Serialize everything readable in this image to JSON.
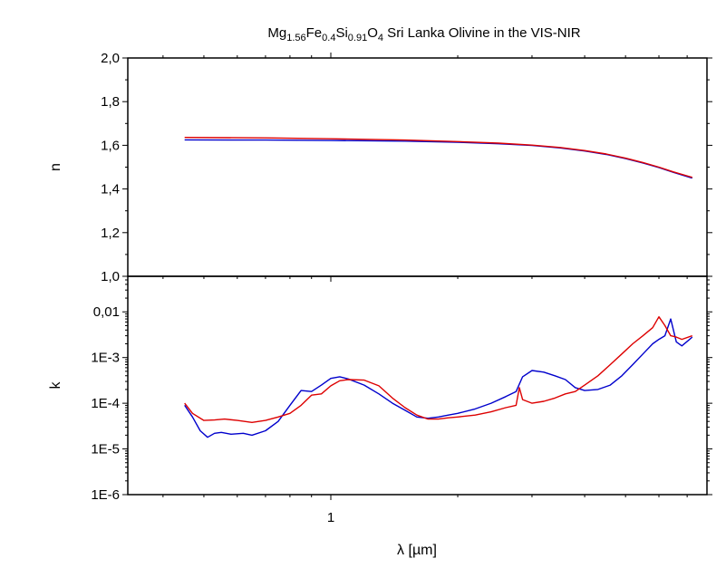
{
  "chart_data": {
    "type": "line",
    "title": {
      "prefix": "Mg",
      "sub1": "1.56",
      "el2": "Fe",
      "sub2": "0.4",
      "el3": "Si",
      "sub3": "0.91",
      "el4": "O",
      "sub4": "4",
      "suffix": " Sri Lanka Olivine in the VIS-NIR"
    },
    "xlabel": "λ [µm]",
    "xscale": "log",
    "xlim": [
      0.33,
      7.8
    ],
    "xticks": [
      {
        "value": 1,
        "label": "1"
      }
    ],
    "colors": {
      "blue": "#0000cc",
      "red": "#dd0000"
    },
    "panels": [
      {
        "id": "n",
        "ylabel": "n",
        "yscale": "linear",
        "ylim": [
          1.0,
          2.0
        ],
        "yticks": [
          {
            "value": 1.0,
            "label": "1,0"
          },
          {
            "value": 1.2,
            "label": "1,2"
          },
          {
            "value": 1.4,
            "label": "1,4"
          },
          {
            "value": 1.6,
            "label": "1,6"
          },
          {
            "value": 1.8,
            "label": "1,8"
          },
          {
            "value": 2.0,
            "label": "2,0"
          }
        ],
        "series": [
          {
            "color": "blue",
            "x": [
              0.45,
              0.7,
              1.0,
              1.5,
              2.0,
              2.5,
              3.0,
              3.5,
              4.0,
              4.5,
              5.0,
              5.5,
              6.0,
              6.5,
              7.2
            ],
            "y": [
              1.625,
              1.624,
              1.622,
              1.619,
              1.614,
              1.607,
              1.599,
              1.588,
              1.574,
              1.558,
              1.539,
              1.519,
              1.498,
              1.476,
              1.45
            ]
          },
          {
            "color": "red",
            "x": [
              0.45,
              0.7,
              1.0,
              1.5,
              2.0,
              2.5,
              3.0,
              3.5,
              4.0,
              4.5,
              5.0,
              5.5,
              6.0,
              6.5,
              7.2
            ],
            "y": [
              1.636,
              1.634,
              1.63,
              1.624,
              1.617,
              1.61,
              1.601,
              1.59,
              1.576,
              1.56,
              1.541,
              1.521,
              1.5,
              1.478,
              1.453
            ]
          }
        ]
      },
      {
        "id": "k",
        "ylabel": "k",
        "yscale": "log",
        "ylim": [
          1e-06,
          0.06
        ],
        "yticks": [
          {
            "value": 1e-06,
            "label": "1E-6"
          },
          {
            "value": 1e-05,
            "label": "1E-5"
          },
          {
            "value": 0.0001,
            "label": "1E-4"
          },
          {
            "value": 0.001,
            "label": "1E-3"
          },
          {
            "value": 0.01,
            "label": "0,01"
          }
        ],
        "series": [
          {
            "color": "blue",
            "x": [
              0.45,
              0.47,
              0.49,
              0.51,
              0.53,
              0.55,
              0.58,
              0.62,
              0.65,
              0.7,
              0.75,
              0.8,
              0.85,
              0.9,
              0.95,
              1.0,
              1.05,
              1.1,
              1.2,
              1.3,
              1.4,
              1.5,
              1.6,
              1.7,
              1.8,
              1.9,
              2.0,
              2.2,
              2.4,
              2.6,
              2.75,
              2.85,
              3.0,
              3.2,
              3.4,
              3.6,
              3.8,
              4.0,
              4.3,
              4.6,
              4.9,
              5.2,
              5.5,
              5.8,
              6.0,
              6.2,
              6.4,
              6.6,
              6.8,
              7.2
            ],
            "y": [
              9e-05,
              5e-05,
              2.5e-05,
              1.8e-05,
              2.2e-05,
              2.3e-05,
              2.1e-05,
              2.2e-05,
              2e-05,
              2.5e-05,
              4e-05,
              9e-05,
              0.00019,
              0.00018,
              0.00025,
              0.00035,
              0.00038,
              0.00034,
              0.00025,
              0.00016,
              0.0001,
              7e-05,
              5e-05,
              4.7e-05,
              5e-05,
              5.5e-05,
              6e-05,
              7.5e-05,
              0.0001,
              0.00014,
              0.00018,
              0.00038,
              0.00052,
              0.00048,
              0.0004,
              0.00033,
              0.00022,
              0.00019,
              0.0002,
              0.00025,
              0.0004,
              0.0007,
              0.0012,
              0.002,
              0.0025,
              0.003,
              0.007,
              0.0022,
              0.0018,
              0.0028
            ]
          },
          {
            "color": "red",
            "x": [
              0.45,
              0.47,
              0.5,
              0.53,
              0.56,
              0.6,
              0.65,
              0.7,
              0.75,
              0.8,
              0.85,
              0.9,
              0.95,
              1.0,
              1.05,
              1.1,
              1.2,
              1.3,
              1.4,
              1.5,
              1.6,
              1.7,
              1.8,
              1.9,
              2.0,
              2.2,
              2.4,
              2.6,
              2.75,
              2.8,
              2.85,
              3.0,
              3.2,
              3.4,
              3.6,
              3.8,
              4.0,
              4.3,
              4.6,
              4.9,
              5.2,
              5.5,
              5.8,
              6.0,
              6.2,
              6.4,
              6.6,
              6.8,
              7.2
            ],
            "y": [
              0.0001,
              6e-05,
              4.2e-05,
              4.3e-05,
              4.5e-05,
              4.2e-05,
              3.8e-05,
              4.2e-05,
              5e-05,
              6e-05,
              9e-05,
              0.00015,
              0.00016,
              0.00024,
              0.00031,
              0.00033,
              0.00032,
              0.00024,
              0.00013,
              8e-05,
              5.5e-05,
              4.5e-05,
              4.5e-05,
              4.8e-05,
              5e-05,
              5.5e-05,
              6.5e-05,
              8e-05,
              9e-05,
              0.00022,
              0.00012,
              0.0001,
              0.00011,
              0.00013,
              0.00016,
              0.00018,
              0.00025,
              0.0004,
              0.0007,
              0.0012,
              0.002,
              0.003,
              0.0045,
              0.0078,
              0.005,
              0.003,
              0.0028,
              0.0025,
              0.003
            ]
          }
        ]
      }
    ]
  }
}
